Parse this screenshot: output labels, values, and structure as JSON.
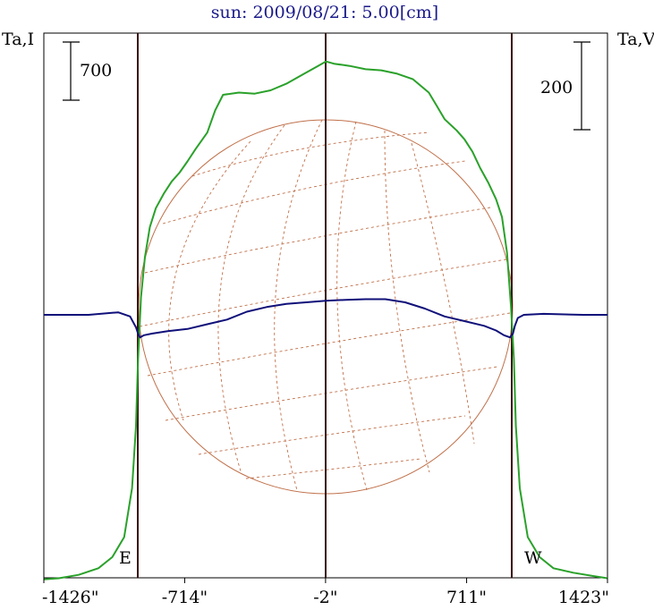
{
  "chart_data": {
    "type": "line",
    "title": "sun: 2009/08/21: 5.00[cm]",
    "left_axis_label": "Ta,I",
    "right_axis_label": "Ta,V",
    "x_tick_labels": [
      "-1426\"",
      "-714\"",
      "-2\"",
      "711\"",
      "1423\""
    ],
    "x_ticks": [
      -1426,
      -714,
      -2,
      711,
      1423
    ],
    "xlim": [
      -1426,
      1423
    ],
    "scale_bar_left": {
      "label": "700",
      "value": 700
    },
    "scale_bar_right": {
      "label": "200",
      "value": 200
    },
    "limb_markers": [
      {
        "label": "E",
        "x": -950
      },
      {
        "label": "W",
        "x": 950
      }
    ],
    "center_marker": {
      "x": -2
    },
    "series": [
      {
        "color": "#2aa12a",
        "x": [
          -1426,
          -1350,
          -1250,
          -1150,
          -1080,
          -1020,
          -980,
          -960,
          -950,
          -935,
          -915,
          -890,
          -860,
          -820,
          -780,
          -740,
          -700,
          -660,
          -600,
          -560,
          -520,
          -440,
          -360,
          -280,
          -200,
          -120,
          -40,
          0,
          40,
          120,
          200,
          280,
          360,
          440,
          520,
          560,
          600,
          660,
          700,
          740,
          780,
          820,
          860,
          890,
          915,
          935,
          950,
          960,
          980,
          1020,
          1080,
          1150,
          1250,
          1350,
          1423
        ],
        "y": [
          -1190,
          -1185,
          -1170,
          -1140,
          -1090,
          -1000,
          -780,
          -500,
          -200,
          80,
          260,
          395,
          480,
          545,
          600,
          640,
          690,
          745,
          820,
          920,
          990,
          1000,
          995,
          1010,
          1040,
          1080,
          1120,
          1140,
          1130,
          1120,
          1105,
          1100,
          1085,
          1060,
          1000,
          940,
          880,
          830,
          790,
          735,
          660,
          595,
          520,
          440,
          280,
          40,
          -200,
          -500,
          -780,
          -1000,
          -1090,
          -1140,
          -1160,
          -1175,
          -1185
        ]
      },
      {
        "color": "#10107a",
        "x": [
          -1426,
          -1200,
          -1050,
          -990,
          -960,
          -950,
          -940,
          -920,
          -880,
          -800,
          -700,
          -600,
          -500,
          -400,
          -300,
          -200,
          -100,
          0,
          100,
          200,
          300,
          400,
          500,
          600,
          700,
          800,
          860,
          900,
          930,
          945,
          955,
          970,
          1000,
          1100,
          1300,
          1423
        ],
        "y": [
          0,
          0,
          8,
          -5,
          -40,
          -60,
          -72,
          -65,
          -60,
          -52,
          -45,
          -30,
          -15,
          10,
          25,
          35,
          40,
          45,
          48,
          50,
          50,
          40,
          20,
          -5,
          -20,
          -35,
          -50,
          -65,
          -72,
          -60,
          -35,
          -10,
          0,
          3,
          0,
          0
        ]
      }
    ]
  }
}
